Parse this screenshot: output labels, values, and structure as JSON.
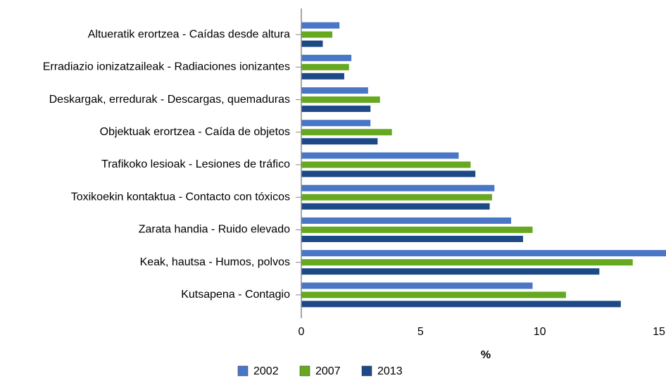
{
  "chart_data": {
    "type": "hbar",
    "categories": [
      "Altueratik erortzea - Caídas desde altura",
      "Erradiazio ionizatzaileak - Radiaciones ionizantes",
      "Deskargak, erredurak - Descargas, quemaduras",
      "Objektuak erortzea - Caída de objetos",
      "Trafikoko lesioak - Lesiones de tráfico",
      "Toxikoekin kontaktua - Contacto con tóxicos",
      "Zarata handia - Ruido elevado",
      "Keak, hautsa - Humos, polvos",
      "Kutsapena - Contagio"
    ],
    "series": [
      {
        "name": "2002",
        "color": "#4a76c6",
        "values": [
          1.6,
          2.1,
          2.8,
          2.9,
          6.6,
          8.1,
          8.8,
          15.6,
          9.7
        ]
      },
      {
        "name": "2007",
        "color": "#66a81f",
        "values": [
          1.3,
          2.0,
          3.3,
          3.8,
          7.1,
          8.0,
          9.7,
          13.9,
          11.1
        ]
      },
      {
        "name": "2013",
        "color": "#1d4a86",
        "values": [
          0.9,
          1.8,
          2.9,
          3.2,
          7.3,
          7.9,
          9.3,
          12.5,
          13.4
        ]
      }
    ],
    "xlabel": "%",
    "xlim": [
      0,
      15
    ],
    "xticks": [
      0,
      5,
      10,
      15
    ],
    "legend": "bottom"
  }
}
